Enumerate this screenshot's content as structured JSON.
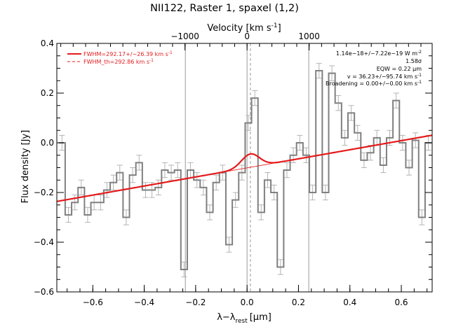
{
  "chart_data": {
    "type": "line",
    "title": "NII122, Raster 1, spaxel (1,2)",
    "xlabel": "λ−λ",
    "xlabel_sub": "rest",
    "xlabel_unit": "[μm]",
    "ylabel": "Flux density [Jy]",
    "top_axis_label": "Velocity [km s",
    "top_axis_label_sup": "-1",
    "top_axis_label_end": "]",
    "xlim": [
      -0.74,
      0.72
    ],
    "ylim": [
      -0.6,
      0.4
    ],
    "top_axis_velocity_per_um": 4140,
    "x_ticks": [
      -0.6,
      -0.4,
      -0.2,
      0.0,
      0.2,
      0.4,
      0.6
    ],
    "x_tick_labels": [
      "−0.6",
      "−0.4",
      "−0.2",
      "0.0",
      "0.2",
      "0.4",
      "0.6"
    ],
    "y_ticks": [
      -0.6,
      -0.4,
      -0.2,
      0.0,
      0.2,
      0.4
    ],
    "y_tick_labels": [
      "−0.6",
      "−0.4",
      "−0.2",
      "0.0",
      "0.2",
      "0.4"
    ],
    "top_ticks": [
      -1000,
      0,
      1000
    ],
    "top_tick_labels": [
      "−1000",
      "0",
      "1000"
    ],
    "reference_lines": {
      "solid_gray": [
        -0.24,
        0.0,
        0.24
      ],
      "dashed_gray": [
        0.013
      ]
    },
    "legend": {
      "placement": "top-left",
      "entries": [
        {
          "text": "FWHM=292.17+/−26.39 km s",
          "sup": "-1",
          "style": "solid"
        },
        {
          "text": "FWHM_th=292.86 km s",
          "sup": "-1",
          "style": "dashed"
        }
      ]
    },
    "annotations": [
      {
        "text": "1.14e−18+/−7.22e−19 W m",
        "sup": "-2"
      },
      {
        "text": "1.58σ"
      },
      {
        "text": "EQW = 0.22 μm"
      },
      {
        "text": "v = 36.23+/−95.74 km s",
        "sup": "-1"
      },
      {
        "text": "Broadening = 0.00+/−0.00 km s",
        "sup": "-1"
      }
    ],
    "colors": {
      "spectrum": "#808080",
      "error_bars": "#b4b4b4",
      "fit": "#e41a1c",
      "reference_lines": "#9a9a9a",
      "text": "#000000"
    },
    "series": [
      {
        "role": "spectrum",
        "drawstyle": "steps-mid",
        "x": [
          -0.72,
          -0.695,
          -0.67,
          -0.645,
          -0.62,
          -0.595,
          -0.57,
          -0.545,
          -0.52,
          -0.495,
          -0.47,
          -0.445,
          -0.42,
          -0.395,
          -0.37,
          -0.345,
          -0.32,
          -0.295,
          -0.27,
          -0.245,
          -0.22,
          -0.195,
          -0.17,
          -0.145,
          -0.12,
          -0.095,
          -0.07,
          -0.045,
          -0.02,
          0.005,
          0.03,
          0.055,
          0.08,
          0.105,
          0.13,
          0.155,
          0.18,
          0.205,
          0.23,
          0.255,
          0.28,
          0.305,
          0.33,
          0.355,
          0.38,
          0.405,
          0.43,
          0.455,
          0.48,
          0.505,
          0.53,
          0.555,
          0.58,
          0.605,
          0.63,
          0.655,
          0.68,
          0.705
        ],
        "y": [
          0.0,
          -0.29,
          -0.24,
          -0.18,
          -0.29,
          -0.24,
          -0.24,
          -0.19,
          -0.16,
          -0.12,
          -0.3,
          -0.13,
          -0.08,
          -0.19,
          -0.19,
          -0.18,
          -0.11,
          -0.12,
          -0.11,
          -0.51,
          -0.11,
          -0.15,
          -0.18,
          -0.28,
          -0.16,
          -0.12,
          -0.41,
          -0.23,
          -0.12,
          0.08,
          0.18,
          -0.28,
          -0.15,
          -0.2,
          -0.5,
          -0.11,
          -0.05,
          0.0,
          -0.05,
          -0.2,
          0.29,
          -0.2,
          0.28,
          0.16,
          0.02,
          0.12,
          0.04,
          -0.07,
          -0.04,
          0.02,
          -0.09,
          0.02,
          0.17,
          0.0,
          -0.1,
          0.01,
          -0.3,
          0.0
        ],
        "err": [
          0.03,
          0.03,
          0.03,
          0.03,
          0.03,
          0.03,
          0.03,
          0.03,
          0.03,
          0.03,
          0.03,
          0.03,
          0.03,
          0.03,
          0.03,
          0.03,
          0.03,
          0.03,
          0.03,
          0.03,
          0.03,
          0.03,
          0.03,
          0.03,
          0.03,
          0.03,
          0.03,
          0.03,
          0.03,
          0.03,
          0.03,
          0.03,
          0.03,
          0.03,
          0.03,
          0.03,
          0.03,
          0.03,
          0.03,
          0.03,
          0.03,
          0.03,
          0.03,
          0.03,
          0.03,
          0.03,
          0.03,
          0.03,
          0.03,
          0.03,
          0.03,
          0.03,
          0.03,
          0.03,
          0.03,
          0.03,
          0.03,
          0.03
        ]
      },
      {
        "role": "fit",
        "style": "thick",
        "continuum_slope": 0.1825,
        "continuum_intercept": -0.1009,
        "line_center": 0.013,
        "line_amplitude": 0.0535,
        "line_sigma": 0.035
      },
      {
        "role": "fwhm_th",
        "style": "thin",
        "continuum_slope": 0.1825,
        "continuum_intercept": -0.1009,
        "line_center": 0.013,
        "line_amplitude": 0.0535,
        "line_sigma": 0.035
      }
    ]
  }
}
